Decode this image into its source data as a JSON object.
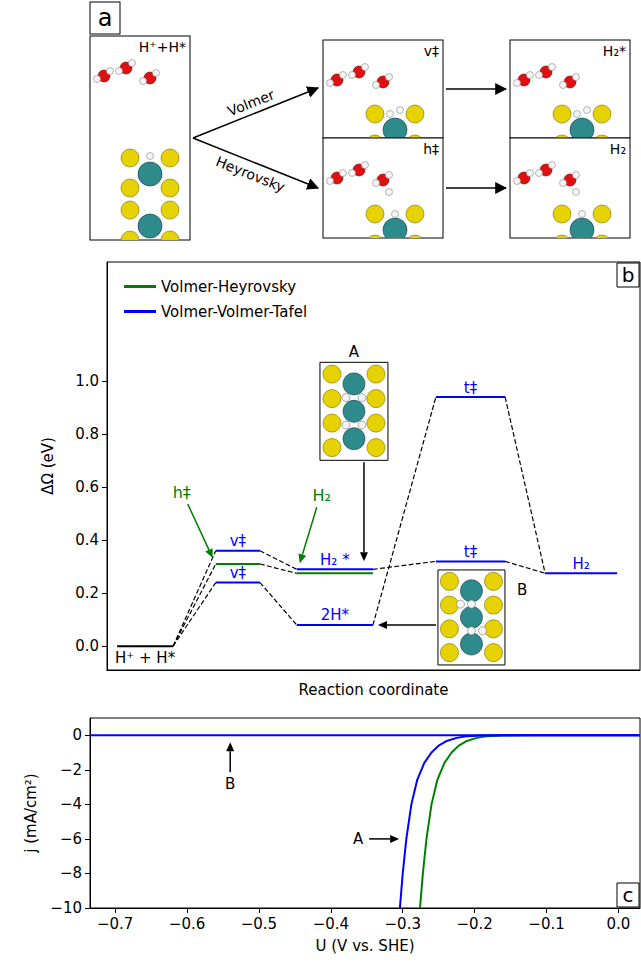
{
  "diagram": {
    "panel_label": "a",
    "states": [
      "H⁺+H*",
      "v‡",
      "h‡",
      "H₂*",
      "H₂"
    ],
    "arrows": [
      "Volmer",
      "Heyrovsky"
    ]
  },
  "chart_data": [
    {
      "type": "line",
      "panel_label": "b",
      "xlabel": "Reaction coordinate",
      "ylabel": "ΔΩ (eV)",
      "xlim": [
        0,
        10
      ],
      "ylim": [
        -0.09,
        1.45
      ],
      "yticks": [
        {
          "value": 0,
          "label": "0.0"
        },
        0.2,
        0.4,
        0.6,
        0.8,
        {
          "value": 1,
          "label": "1.0"
        }
      ],
      "tick_labels": "y",
      "legend": "upper left",
      "series": [
        {
          "name": "Volmer-Heyrovsky",
          "color": "#008000"
        },
        {
          "name": "Volmer-Volmer-Tafel",
          "color": "#0000ff"
        }
      ],
      "levels": [
        {
          "x": [
            0.19,
            1.24
          ],
          "y": 0,
          "color": "#000000",
          "label": "H⁺ + H*",
          "label_position": "below"
        },
        {
          "x": [
            2.04,
            2.87
          ],
          "y": 0.31,
          "color": "#008000"
        },
        {
          "x": [
            2.04,
            2.87
          ],
          "y": 0.36,
          "color": "#0000ff",
          "label": "v‡",
          "label_position": "above"
        },
        {
          "x": [
            2.04,
            2.87
          ],
          "y": 0.24,
          "color": "#0000ff",
          "label": "v‡",
          "label_position": "above"
        },
        {
          "x": [
            3.56,
            4.99
          ],
          "y": 0.275,
          "color": "#008000"
        },
        {
          "x": [
            3.56,
            4.99
          ],
          "y": 0.29,
          "color": "#0000ff",
          "label": "H₂ *",
          "label_position": "above"
        },
        {
          "x": [
            3.56,
            4.99
          ],
          "y": 0.08,
          "color": "#0000ff",
          "label": "2H*",
          "label_position": "above"
        },
        {
          "x": [
            6.17,
            7.47
          ],
          "y": 0.94,
          "color": "#0000ff",
          "label": "t‡",
          "label_position": "above"
        },
        {
          "x": [
            6.17,
            7.47
          ],
          "y": 0.32,
          "color": "#0000ff",
          "label": "t‡",
          "label_position": "above"
        },
        {
          "x": [
            8.22,
            9.57
          ],
          "y": 0.275,
          "color": "#0000ff",
          "label": "H₂",
          "label_position": "above"
        }
      ],
      "connectors": [
        [
          0,
          1
        ],
        [
          0,
          2
        ],
        [
          0,
          3
        ],
        [
          1,
          4
        ],
        [
          2,
          5
        ],
        [
          3,
          6
        ],
        [
          5,
          8
        ],
        [
          6,
          7
        ],
        [
          7,
          9
        ],
        [
          8,
          9
        ]
      ],
      "annotations": [
        {
          "text": "h‡",
          "color": "#008000",
          "points_to": 1
        },
        {
          "text": "H₂",
          "color": "#008000",
          "points_to": 4
        },
        {
          "text": "A",
          "color": "#000000",
          "points_to": 5
        },
        {
          "text": "B",
          "color": "#000000",
          "points_to": 6
        }
      ]
    },
    {
      "type": "line",
      "panel_label": "c",
      "xlabel": "U (V vs. SHE)",
      "ylabel": "j (mA/cm²)",
      "xlim": [
        -0.735,
        0.03
      ],
      "ylim": [
        -10,
        1
      ],
      "xticks": [
        {
          "value": -0.7,
          "label": "−0.7"
        },
        {
          "value": -0.6,
          "label": "−0.6"
        },
        {
          "value": -0.5,
          "label": "−0.5"
        },
        {
          "value": -0.4,
          "label": "−0.4"
        },
        {
          "value": -0.3,
          "label": "−0.3"
        },
        {
          "value": -0.2,
          "label": "−0.2"
        },
        {
          "value": -0.1,
          "label": "−0.1"
        },
        {
          "value": 0,
          "label": "0.0"
        }
      ],
      "yticks": [
        {
          "value": -10,
          "label": "−10"
        },
        {
          "value": -8,
          "label": "−8"
        },
        {
          "value": -6,
          "label": "−6"
        },
        {
          "value": -4,
          "label": "−4"
        },
        {
          "value": -2,
          "label": "−2"
        },
        0
      ],
      "series": [
        {
          "color": "#008000",
          "x": [
            -0.276,
            -0.272,
            -0.267,
            -0.26,
            -0.252,
            -0.242,
            -0.232,
            -0.222,
            -0.212,
            -0.197,
            -0.182,
            -0.162,
            -0.12,
            0.03
          ],
          "values": [
            -10,
            -8,
            -6,
            -4,
            -2.6,
            -1.6,
            -1.0,
            -0.6,
            -0.35,
            -0.15,
            -0.05,
            -0.01,
            0,
            0
          ]
        },
        {
          "color": "#0000ff",
          "x": [
            -0.304,
            -0.3,
            -0.295,
            -0.288,
            -0.28,
            -0.27,
            -0.26,
            -0.25,
            -0.24,
            -0.225,
            -0.21,
            -0.19,
            -0.15,
            0.03
          ],
          "values": [
            -10,
            -8,
            -6,
            -4,
            -2.6,
            -1.6,
            -1.0,
            -0.6,
            -0.35,
            -0.15,
            -0.05,
            -0.01,
            0,
            0
          ]
        },
        {
          "color": "#0000ff",
          "x": [
            -0.735,
            0.03
          ],
          "values": [
            0,
            0
          ]
        }
      ],
      "annotations": [
        {
          "text": "A",
          "x": -0.305,
          "y": -6
        },
        {
          "text": "B",
          "x": -0.54,
          "y": -0.4
        }
      ]
    }
  ]
}
